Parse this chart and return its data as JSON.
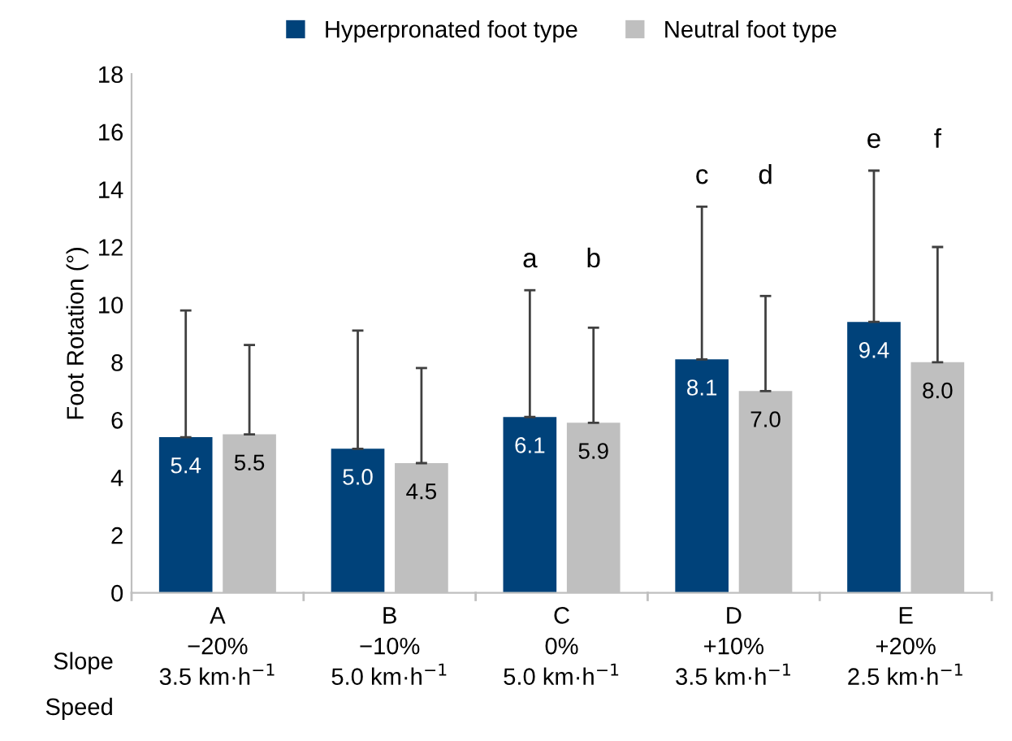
{
  "chart_data": {
    "type": "bar",
    "ylabel": "Foot Rotation (°)",
    "categories": [
      "A\n−20%\n3.5 km·h$^{−1}$",
      "B\n−10%\n5.0 km·h$^{−1}$",
      "C\n0%\n5.0 km·h$^{−1}$",
      "D\n+10%\n3.5 km·h$^{−1}$",
      "E\n+20%\n2.5 km·h$^{−1}$"
    ],
    "series": [
      {
        "name": "Hyperpronated foot type",
        "color": "#00427a",
        "values": [
          5.4,
          5.0,
          6.1,
          8.1,
          9.4
        ],
        "value_labels": [
          "5.4",
          "5.0",
          "6.1",
          "8.1",
          "9.4"
        ],
        "errors": [
          [
            5.4,
            9.8
          ],
          [
            5.0,
            9.1
          ],
          [
            6.1,
            10.5
          ],
          [
            8.1,
            13.4
          ],
          [
            9.4,
            14.65
          ]
        ]
      },
      {
        "name": "Neutral foot type",
        "color": "#bfbfbf",
        "values": [
          5.5,
          4.5,
          5.9,
          7.0,
          8.0
        ],
        "value_labels": [
          "5.5",
          "4.5",
          "5.9",
          "7.0",
          "8.0"
        ],
        "errors": [
          [
            5.5,
            8.6
          ],
          [
            4.5,
            7.8
          ],
          [
            5.9,
            9.2
          ],
          [
            7.0,
            10.3
          ],
          [
            8.0,
            12.0
          ]
        ]
      }
    ],
    "ylim": [
      0,
      18
    ],
    "yticks": [
      0,
      2,
      4,
      6,
      8,
      10,
      12,
      14,
      16,
      18
    ],
    "grid": false,
    "legend": "top",
    "annotations": [
      "Slope",
      "Speed",
      "a",
      "b",
      "c",
      "d",
      "e",
      "f"
    ]
  }
}
